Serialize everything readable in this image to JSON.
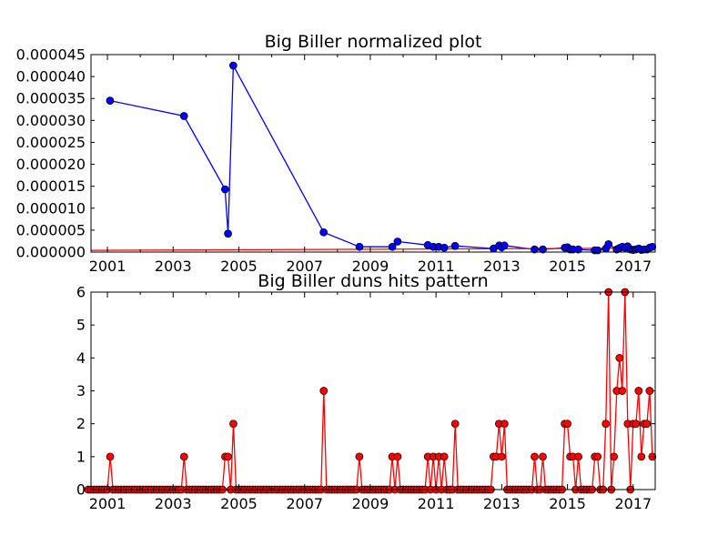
{
  "chart_data": [
    {
      "type": "line",
      "title": "Big Biller normalized plot",
      "xlabel": "",
      "ylabel": "",
      "xlim": [
        2000.5,
        2017.67
      ],
      "ylim": [
        0,
        4.5e-05
      ],
      "x_ticks": [
        "2001",
        "2003",
        "2005",
        "2007",
        "2009",
        "2011",
        "2013",
        "2015",
        "2017"
      ],
      "y_ticks": [
        "0.000000",
        "0.000005",
        "0.000010",
        "0.000015",
        "0.000020",
        "0.000025",
        "0.000030",
        "0.000035",
        "0.000040",
        "0.000045"
      ],
      "grid": false,
      "series": [
        {
          "color": "#0000ff",
          "marker": "circle",
          "points": [
            [
              2001.08,
              3.45e-05
            ],
            [
              2003.33,
              3.1e-05
            ],
            [
              2004.58,
              1.43e-05
            ],
            [
              2004.67,
              4.2e-06
            ],
            [
              2004.83,
              4.25e-05
            ],
            [
              2007.58,
              4.5e-06
            ],
            [
              2008.67,
              1.2e-06
            ],
            [
              2009.67,
              1.2e-06
            ],
            [
              2009.83,
              2.4e-06
            ],
            [
              2010.75,
              1.6e-06
            ],
            [
              2010.92,
              1.2e-06
            ],
            [
              2011.08,
              1.2e-06
            ],
            [
              2011.25,
              1e-06
            ],
            [
              2011.58,
              1.4e-06
            ],
            [
              2012.75,
              8e-07
            ],
            [
              2012.92,
              1.5e-06
            ],
            [
              2013.0,
              1.1e-06
            ],
            [
              2013.08,
              1.5e-06
            ],
            [
              2014.0,
              6e-07
            ],
            [
              2014.25,
              6e-07
            ],
            [
              2014.92,
              1e-06
            ],
            [
              2015.0,
              1.1e-06
            ],
            [
              2015.08,
              6e-07
            ],
            [
              2015.17,
              6e-07
            ],
            [
              2015.33,
              6e-07
            ],
            [
              2015.83,
              4e-07
            ],
            [
              2015.92,
              4e-07
            ],
            [
              2016.17,
              8e-07
            ],
            [
              2016.25,
              1.8e-06
            ],
            [
              2016.5,
              6e-07
            ],
            [
              2016.58,
              9e-07
            ],
            [
              2016.67,
              1.2e-06
            ],
            [
              2016.75,
              1e-06
            ],
            [
              2016.83,
              1.3e-06
            ],
            [
              2016.92,
              6e-07
            ],
            [
              2017.0,
              5e-07
            ],
            [
              2017.08,
              6e-07
            ],
            [
              2017.17,
              8e-07
            ],
            [
              2017.25,
              5e-07
            ],
            [
              2017.33,
              6e-07
            ],
            [
              2017.42,
              6e-07
            ],
            [
              2017.5,
              1e-06
            ],
            [
              2017.58,
              1.2e-06
            ]
          ]
        },
        {
          "color": "#ff0000",
          "marker": "none",
          "points": [
            [
              2000.5,
              4e-07
            ],
            [
              2017.67,
              9e-07
            ]
          ]
        }
      ]
    },
    {
      "type": "line",
      "title": "Big Biller duns hits pattern",
      "xlabel": "",
      "ylabel": "",
      "xlim": [
        2000.5,
        2017.67
      ],
      "ylim": [
        0,
        6
      ],
      "x_ticks": [
        "2001",
        "2003",
        "2005",
        "2007",
        "2009",
        "2011",
        "2013",
        "2015",
        "2017"
      ],
      "y_ticks": [
        "0",
        "1",
        "2",
        "3",
        "4",
        "5",
        "6"
      ],
      "grid": false,
      "series": [
        {
          "color": "#ff0000",
          "marker": "circle",
          "start_year": 2000,
          "start_month": 6,
          "nonzero": [
            [
              "2001-02",
              1
            ],
            [
              "2003-05",
              1
            ],
            [
              "2004-08",
              1
            ],
            [
              "2004-09",
              1
            ],
            [
              "2004-11",
              2
            ],
            [
              "2007-08",
              3
            ],
            [
              "2008-09",
              1
            ],
            [
              "2009-09",
              1
            ],
            [
              "2009-11",
              1
            ],
            [
              "2010-10",
              1
            ],
            [
              "2010-12",
              1
            ],
            [
              "2011-02",
              1
            ],
            [
              "2011-04",
              1
            ],
            [
              "2011-08",
              2
            ],
            [
              "2012-10",
              1
            ],
            [
              "2012-11",
              1
            ],
            [
              "2012-12",
              2
            ],
            [
              "2013-01",
              1
            ],
            [
              "2013-02",
              2
            ],
            [
              "2014-01",
              1
            ],
            [
              "2014-04",
              1
            ],
            [
              "2014-12",
              2
            ],
            [
              "2015-01",
              2
            ],
            [
              "2015-02",
              1
            ],
            [
              "2015-03",
              1
            ],
            [
              "2015-05",
              1
            ],
            [
              "2015-11",
              1
            ],
            [
              "2015-12",
              1
            ],
            [
              "2016-03",
              2
            ],
            [
              "2016-04",
              6
            ],
            [
              "2016-06",
              1
            ],
            [
              "2016-07",
              3
            ],
            [
              "2016-08",
              4
            ],
            [
              "2016-09",
              3
            ],
            [
              "2016-10",
              6
            ],
            [
              "2016-11",
              2
            ],
            [
              "2017-01",
              2
            ],
            [
              "2017-02",
              2
            ],
            [
              "2017-03",
              3
            ],
            [
              "2017-04",
              1
            ],
            [
              "2017-05",
              2
            ],
            [
              "2017-06",
              2
            ],
            [
              "2017-07",
              3
            ],
            [
              "2017-08",
              1
            ]
          ],
          "end_year": 2017,
          "end_month": 8
        }
      ]
    }
  ]
}
